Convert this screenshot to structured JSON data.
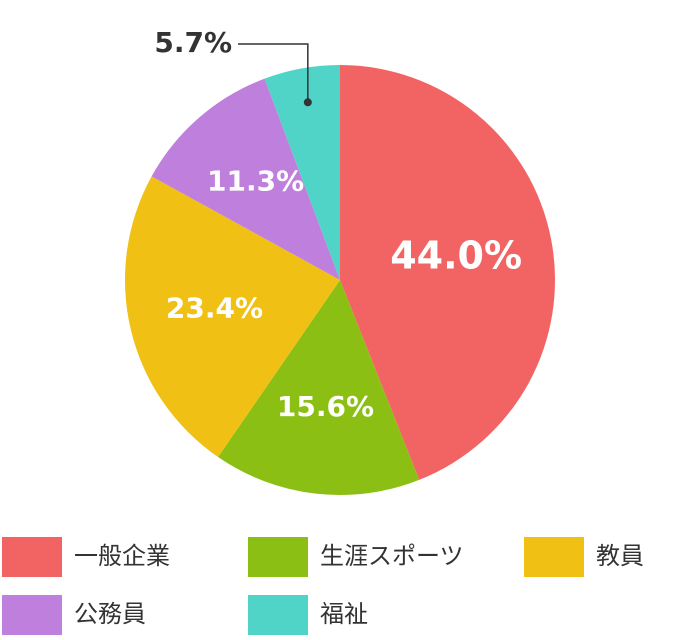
{
  "chart_data": {
    "type": "pie",
    "categories": [
      "一般企業",
      "生涯スポーツ",
      "教員",
      "公務員",
      "福祉"
    ],
    "values": [
      44.0,
      15.6,
      23.4,
      11.3,
      5.7
    ],
    "value_labels": [
      "44.0%",
      "15.6%",
      "23.4%",
      "11.3%",
      "5.7%"
    ],
    "colors": [
      "#f26464",
      "#8cbf14",
      "#f0c014",
      "#bf80dd",
      "#50d4c8"
    ]
  }
}
